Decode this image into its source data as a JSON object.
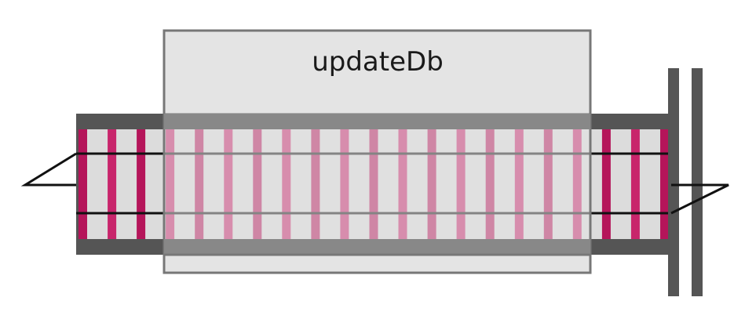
{
  "function_box": {
    "label": "updateDb"
  },
  "track": {
    "tie_count": 21,
    "tie_colors": [
      "#b5155a",
      "#c8256b"
    ],
    "rail_color": "#111111"
  },
  "colors": {
    "box_fill": "#e4e4e4",
    "box_stroke": "#777777",
    "shoulder": "#555555",
    "gap_fill": "#dcdcdc",
    "buffer_posts": "#555555"
  }
}
